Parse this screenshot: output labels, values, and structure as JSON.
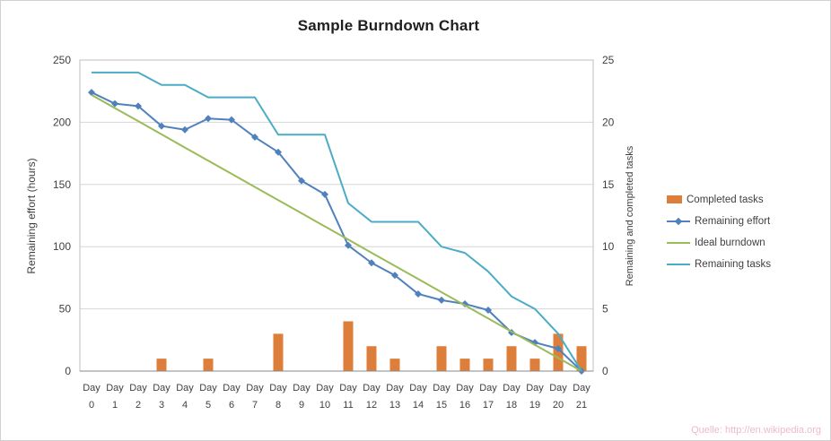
{
  "page": {
    "watermark": "Quelle: http://en.wikipedia.org"
  },
  "chart_data": {
    "type": "bar",
    "combo": true,
    "title": "Sample Burndown Chart",
    "x_label_prefix": "Day",
    "categories": [
      "0",
      "1",
      "2",
      "3",
      "4",
      "5",
      "6",
      "7",
      "8",
      "9",
      "10",
      "11",
      "12",
      "13",
      "14",
      "15",
      "16",
      "17",
      "18",
      "19",
      "20",
      "21"
    ],
    "left_axis": {
      "label": "Remaining effort (hours)",
      "min": 0,
      "max": 250,
      "ticks": [
        0,
        50,
        100,
        150,
        200,
        250
      ]
    },
    "right_axis": {
      "label": "Remaining and completed tasks",
      "min": 0,
      "max": 25,
      "ticks": [
        0,
        5,
        10,
        15,
        20,
        25
      ]
    },
    "grid": true,
    "legend_position": "right",
    "series": [
      {
        "name": "Completed tasks",
        "type": "bar",
        "axis": "right",
        "color": "#DD7E3B",
        "values": [
          0,
          0,
          0,
          1,
          0,
          1,
          0,
          0,
          3,
          0,
          0,
          4,
          2,
          1,
          0,
          2,
          1,
          1,
          2,
          1,
          3,
          2
        ]
      },
      {
        "name": "Remaining effort",
        "type": "line",
        "marker": "diamond",
        "axis": "left",
        "color": "#4F81BD",
        "values": [
          224,
          215,
          213,
          197,
          194,
          203,
          202,
          188,
          176,
          153,
          142,
          101,
          87,
          77,
          62,
          57,
          54,
          49,
          31,
          23,
          18,
          0
        ]
      },
      {
        "name": "Ideal burndown",
        "type": "line",
        "marker": "none",
        "axis": "left",
        "color": "#9BBB59",
        "values": [
          222,
          211.4,
          200.9,
          190.3,
          179.7,
          169.1,
          158.6,
          148,
          137.4,
          126.9,
          116.3,
          105.7,
          95.1,
          84.6,
          74,
          63.4,
          52.9,
          42.3,
          31.7,
          21.1,
          10.6,
          0
        ]
      },
      {
        "name": "Remaining tasks",
        "type": "line",
        "marker": "none",
        "axis": "right",
        "color": "#4BACC6",
        "values": [
          24,
          24,
          24,
          23,
          23,
          22,
          22,
          22,
          19,
          19,
          19,
          13.5,
          12,
          12,
          12,
          10,
          9.5,
          8,
          6,
          5,
          3,
          0
        ]
      }
    ]
  }
}
